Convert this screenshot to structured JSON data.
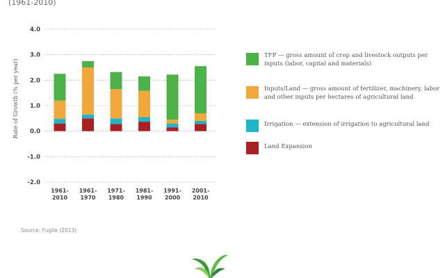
{
  "subtitle": "(1961-2010)",
  "source": "Source: Fuglie (2013)",
  "colors": {
    "tfp": "#4cb146",
    "inputs": "#f0a83c",
    "irrigation": "#1fb5c8",
    "land": "#a82224",
    "grid": "#aaaaaa"
  },
  "legend": [
    {
      "key": "tfp",
      "text": "TFP — gross amount of crop and livestock outputs per inputs (labor, capital and materials)"
    },
    {
      "key": "inputs",
      "text": "Inputs/Land — gross amount of fertilizer, machinery, labor and other inputs per hectares of agricultural land"
    },
    {
      "key": "irrigation",
      "text": "Irrigation — extension of irrigation to agricultural land"
    },
    {
      "key": "land",
      "text": "Land Expansion"
    }
  ],
  "chart_data": {
    "type": "bar",
    "stacked": true,
    "ylabel": "Rate of Growth (% per year)",
    "ylim": [
      -2.0,
      4.0
    ],
    "yticks": [
      "4.0",
      "3.0",
      "2.0",
      "1.0",
      "0.0",
      "-1.0",
      "-2.0"
    ],
    "grid": true,
    "categories": [
      [
        "1961-",
        "2010"
      ],
      [
        "1961-",
        "1970"
      ],
      [
        "1971-",
        "1980"
      ],
      [
        "1981-",
        "1990"
      ],
      [
        "1991-",
        "2000"
      ],
      [
        "2001-",
        "2010"
      ]
    ],
    "series": [
      {
        "name": "Land Expansion",
        "key": "land",
        "values": [
          0.3,
          0.5,
          0.28,
          0.37,
          0.15,
          0.28
        ]
      },
      {
        "name": "Irrigation",
        "key": "irrigation",
        "values": [
          0.18,
          0.15,
          0.22,
          0.18,
          0.15,
          0.12
        ]
      },
      {
        "name": "Inputs/Land",
        "key": "inputs",
        "values": [
          0.72,
          1.85,
          1.15,
          1.03,
          0.15,
          0.3
        ]
      },
      {
        "name": "TFP",
        "key": "tfp",
        "values": [
          1.05,
          0.25,
          0.67,
          0.57,
          1.77,
          1.85
        ]
      }
    ]
  }
}
